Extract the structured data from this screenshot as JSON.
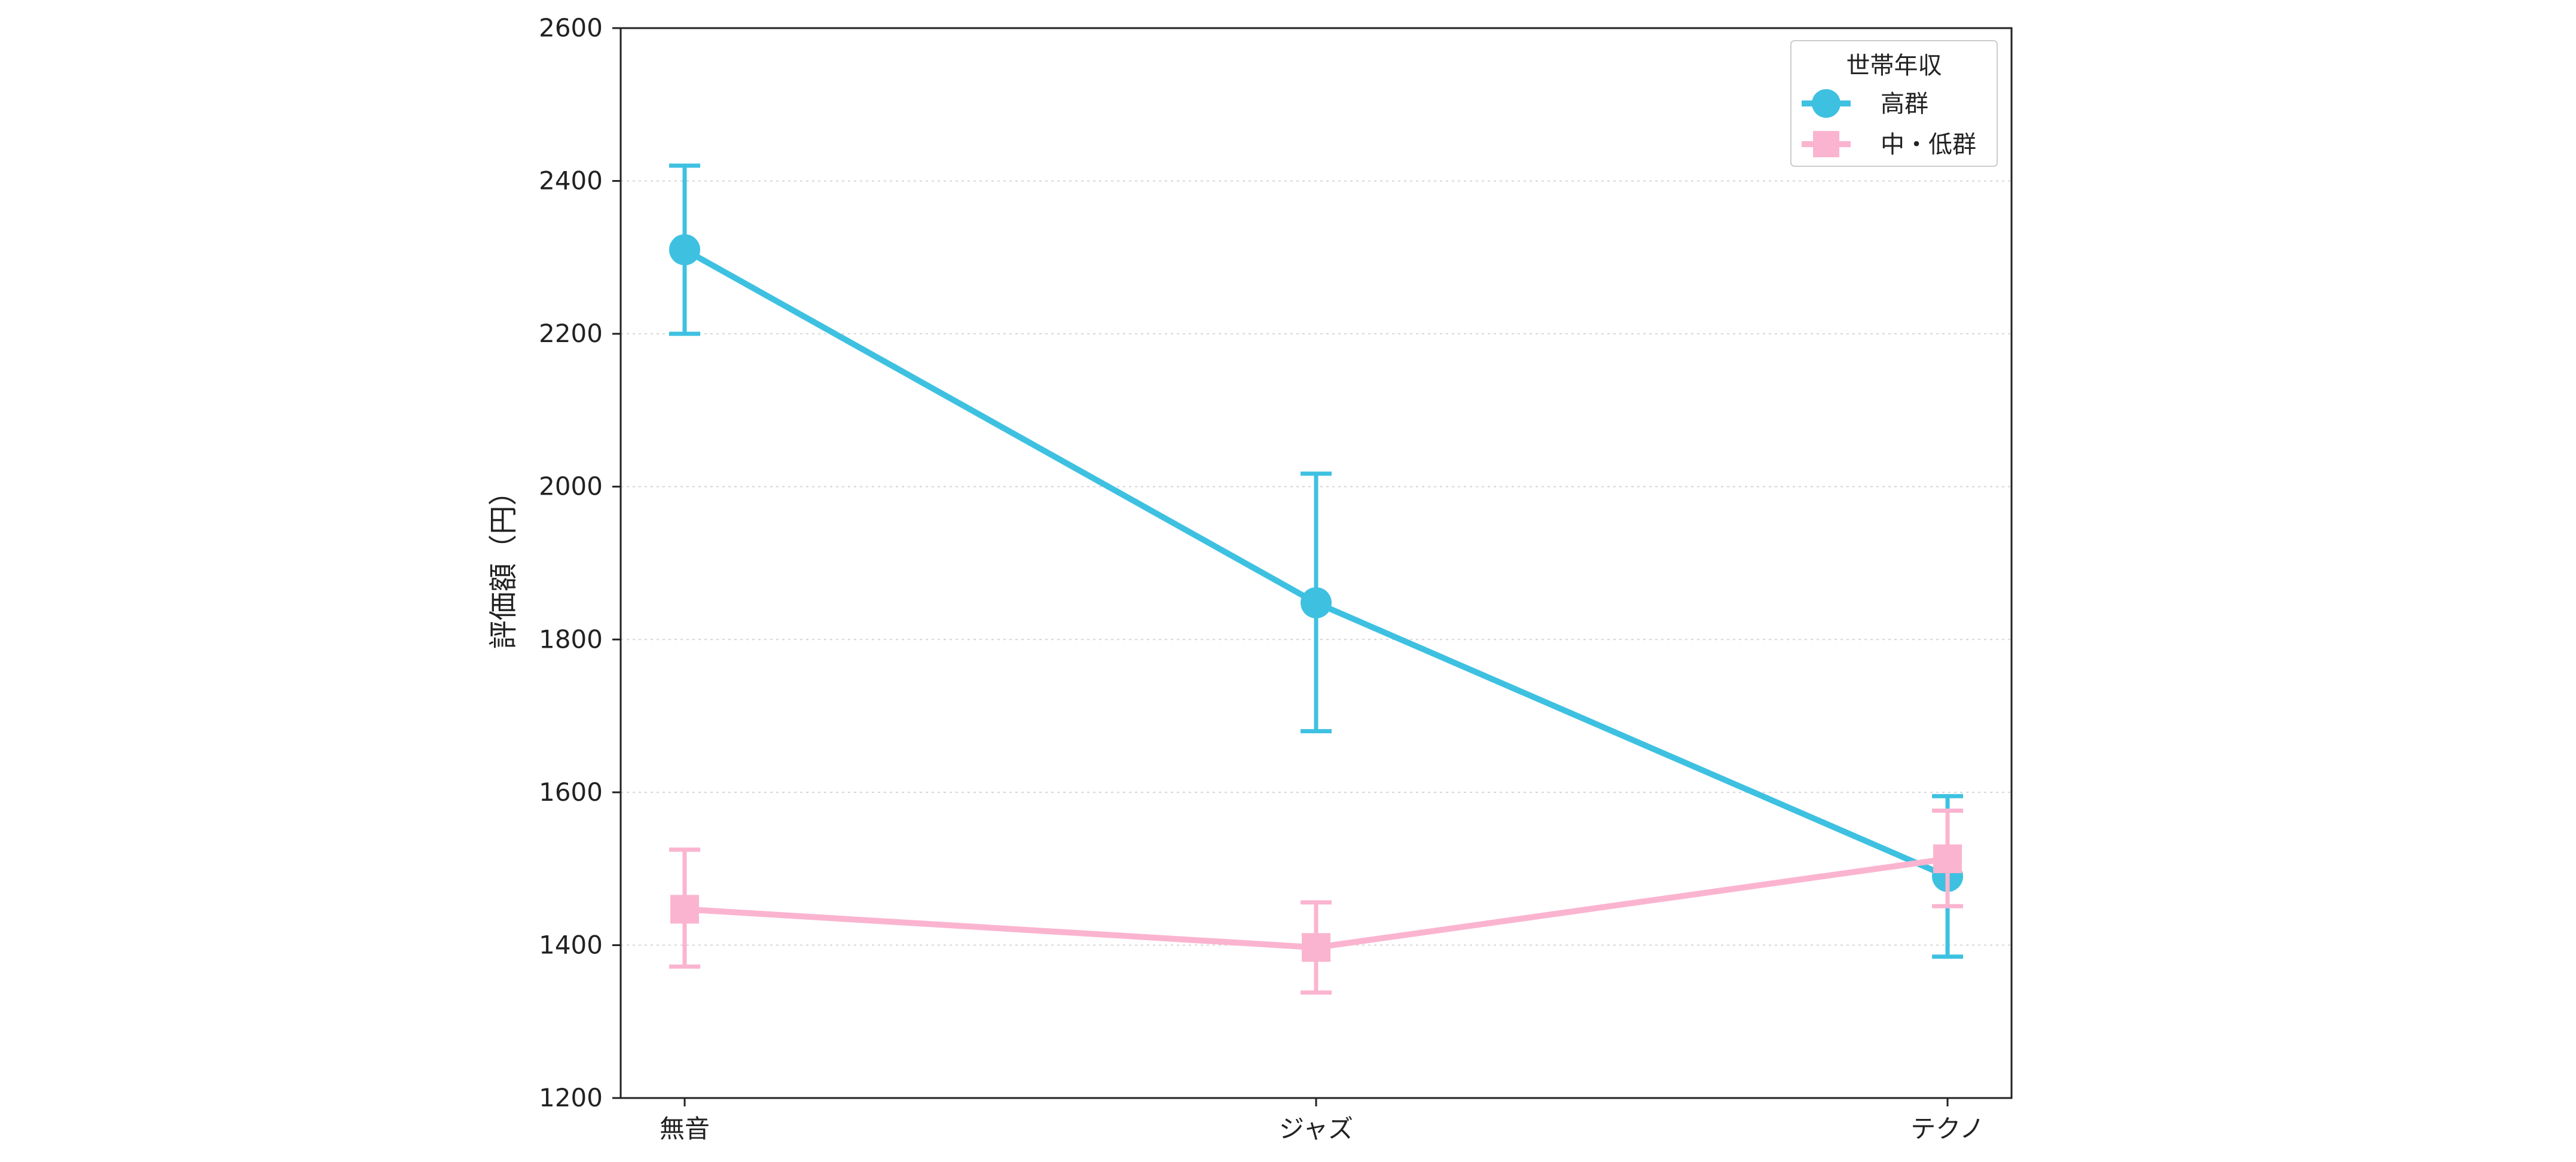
{
  "chart_data": {
    "type": "line",
    "categories": [
      "無音",
      "ジャズ",
      "テクノ"
    ],
    "ylabel": "評価額（円）",
    "xlabel": "",
    "ylim": [
      1200,
      2600
    ],
    "yticks": [
      1200,
      1400,
      1600,
      1800,
      2000,
      2200,
      2400,
      2600
    ],
    "grid": "horizontal-dotted",
    "legend": {
      "title": "世帯年収",
      "placement": "top-right"
    },
    "series": [
      {
        "name": "高群",
        "color": "#3ec1e1",
        "marker": "circle",
        "values": [
          2310,
          1848,
          1490
        ],
        "error_low": [
          2200,
          1680,
          1385
        ],
        "error_high": [
          2420,
          2017,
          1595
        ]
      },
      {
        "name": "中・低群",
        "color": "#fbb4cf",
        "marker": "square",
        "values": [
          1447,
          1397,
          1513
        ],
        "error_low": [
          1372,
          1338,
          1451
        ],
        "error_high": [
          1525,
          1456,
          1576
        ]
      }
    ]
  }
}
